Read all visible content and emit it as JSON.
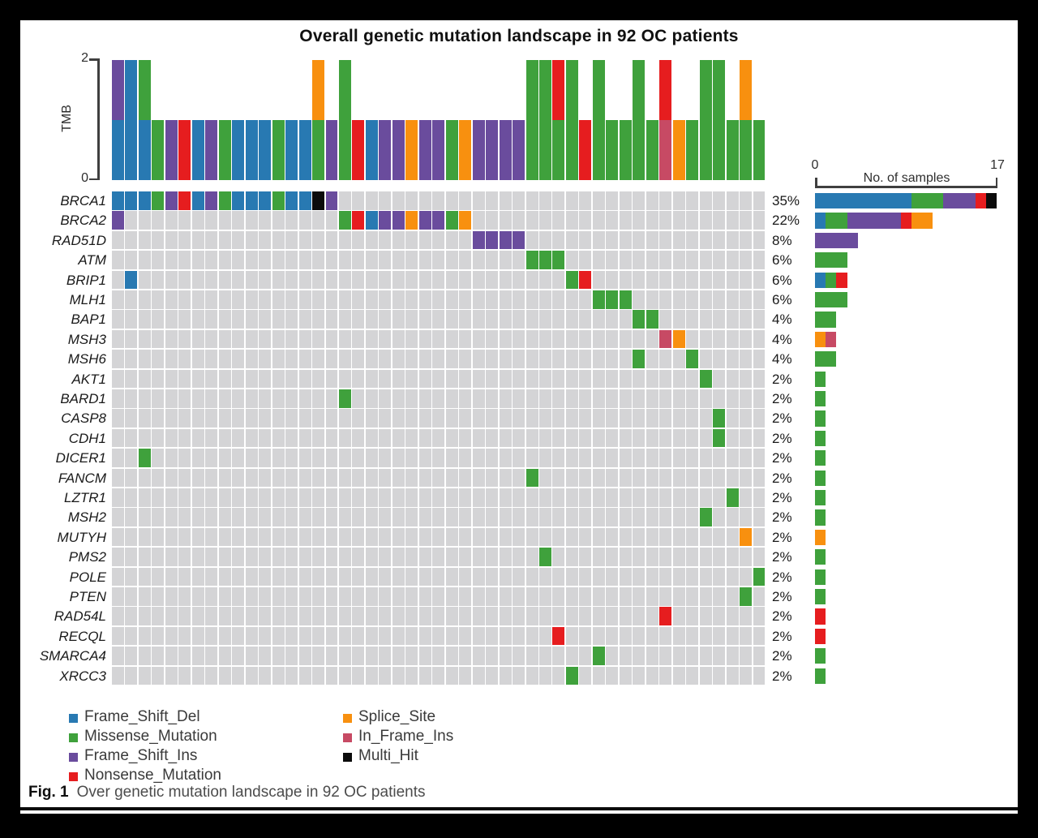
{
  "title": "Overall genetic mutation landscape in 92 OC patients",
  "chart_data": {
    "type": "heatmap",
    "subtype": "oncoplot-mutation-landscape",
    "title": "Overall genetic mutation landscape in 92 OC patients",
    "cohort_size_in_title": 92,
    "n_sample_columns": 49,
    "mutation_types": {
      "B": {
        "name": "Frame_Shift_Del",
        "color": "#2879b2"
      },
      "G": {
        "name": "Missense_Mutation",
        "color": "#3fa13c"
      },
      "P": {
        "name": "Frame_Shift_Ins",
        "color": "#6a4c9d"
      },
      "R": {
        "name": "Nonsense_Mutation",
        "color": "#e61d1f"
      },
      "O": {
        "name": "Splice_Site",
        "color": "#f8900f"
      },
      "I": {
        "name": "In_Frame_Ins",
        "color": "#c74a64"
      },
      "K": {
        "name": "Multi_Hit",
        "color": "#0b0b0b"
      }
    },
    "empty_cell_color": "#d4d4d6",
    "tmb_panel": {
      "ylabel": "TMB",
      "ylim": [
        0,
        2
      ],
      "ymin_label": "0",
      "ymax_label": "2",
      "stacks_bottom_to_top": [
        [
          "B",
          "P"
        ],
        [
          "B",
          "B"
        ],
        [
          "B",
          "G"
        ],
        [
          "G"
        ],
        [
          "P"
        ],
        [
          "R"
        ],
        [
          "B"
        ],
        [
          "P"
        ],
        [
          "G"
        ],
        [
          "B"
        ],
        [
          "B"
        ],
        [
          "B"
        ],
        [
          "G"
        ],
        [
          "B"
        ],
        [
          "B"
        ],
        [
          "G",
          "O"
        ],
        [
          "P"
        ],
        [
          "G",
          "G"
        ],
        [
          "R"
        ],
        [
          "B"
        ],
        [
          "P"
        ],
        [
          "P"
        ],
        [
          "O"
        ],
        [
          "P"
        ],
        [
          "P"
        ],
        [
          "G"
        ],
        [
          "O"
        ],
        [
          "P"
        ],
        [
          "P"
        ],
        [
          "P"
        ],
        [
          "P"
        ],
        [
          "G",
          "G"
        ],
        [
          "G",
          "G"
        ],
        [
          "G",
          "R"
        ],
        [
          "G",
          "G"
        ],
        [
          "R"
        ],
        [
          "G",
          "G"
        ],
        [
          "G"
        ],
        [
          "G"
        ],
        [
          "G",
          "G"
        ],
        [
          "G"
        ],
        [
          "I",
          "R"
        ],
        [
          "O"
        ],
        [
          "G"
        ],
        [
          "G",
          "G"
        ],
        [
          "G",
          "G"
        ],
        [
          "G"
        ],
        [
          "G",
          "O"
        ],
        [
          "G"
        ]
      ]
    },
    "genes": [
      {
        "name": "BRCA1",
        "percent": "35%",
        "cells": [
          [
            1,
            "B"
          ],
          [
            2,
            "B"
          ],
          [
            3,
            "B"
          ],
          [
            4,
            "G"
          ],
          [
            5,
            "P"
          ],
          [
            6,
            "R"
          ],
          [
            7,
            "B"
          ],
          [
            8,
            "P"
          ],
          [
            9,
            "G"
          ],
          [
            10,
            "B"
          ],
          [
            11,
            "B"
          ],
          [
            12,
            "B"
          ],
          [
            13,
            "G"
          ],
          [
            14,
            "B"
          ],
          [
            15,
            "B"
          ],
          [
            16,
            "K"
          ],
          [
            17,
            "P"
          ]
        ]
      },
      {
        "name": "BRCA2",
        "percent": "22%",
        "cells": [
          [
            1,
            "P"
          ],
          [
            18,
            "G"
          ],
          [
            19,
            "R"
          ],
          [
            20,
            "B"
          ],
          [
            21,
            "P"
          ],
          [
            22,
            "P"
          ],
          [
            23,
            "O"
          ],
          [
            24,
            "P"
          ],
          [
            25,
            "P"
          ],
          [
            26,
            "G"
          ],
          [
            27,
            "O"
          ]
        ]
      },
      {
        "name": "RAD51D",
        "percent": "8%",
        "cells": [
          [
            28,
            "P"
          ],
          [
            29,
            "P"
          ],
          [
            30,
            "P"
          ],
          [
            31,
            "P"
          ]
        ]
      },
      {
        "name": "ATM",
        "percent": "6%",
        "cells": [
          [
            32,
            "G"
          ],
          [
            33,
            "G"
          ],
          [
            34,
            "G"
          ]
        ]
      },
      {
        "name": "BRIP1",
        "percent": "6%",
        "cells": [
          [
            2,
            "B"
          ],
          [
            35,
            "G"
          ],
          [
            36,
            "R"
          ]
        ]
      },
      {
        "name": "MLH1",
        "percent": "6%",
        "cells": [
          [
            37,
            "G"
          ],
          [
            38,
            "G"
          ],
          [
            39,
            "G"
          ]
        ]
      },
      {
        "name": "BAP1",
        "percent": "4%",
        "cells": [
          [
            40,
            "G"
          ],
          [
            41,
            "G"
          ]
        ]
      },
      {
        "name": "MSH3",
        "percent": "4%",
        "cells": [
          [
            42,
            "I"
          ],
          [
            43,
            "O"
          ]
        ]
      },
      {
        "name": "MSH6",
        "percent": "4%",
        "cells": [
          [
            40,
            "G"
          ],
          [
            44,
            "G"
          ]
        ]
      },
      {
        "name": "AKT1",
        "percent": "2%",
        "cells": [
          [
            45,
            "G"
          ]
        ]
      },
      {
        "name": "BARD1",
        "percent": "2%",
        "cells": [
          [
            18,
            "G"
          ]
        ]
      },
      {
        "name": "CASP8",
        "percent": "2%",
        "cells": [
          [
            46,
            "G"
          ]
        ]
      },
      {
        "name": "CDH1",
        "percent": "2%",
        "cells": [
          [
            46,
            "G"
          ]
        ]
      },
      {
        "name": "DICER1",
        "percent": "2%",
        "cells": [
          [
            3,
            "G"
          ]
        ]
      },
      {
        "name": "FANCM",
        "percent": "2%",
        "cells": [
          [
            32,
            "G"
          ]
        ]
      },
      {
        "name": "LZTR1",
        "percent": "2%",
        "cells": [
          [
            47,
            "G"
          ]
        ]
      },
      {
        "name": "MSH2",
        "percent": "2%",
        "cells": [
          [
            45,
            "G"
          ]
        ]
      },
      {
        "name": "MUTYH",
        "percent": "2%",
        "cells": [
          [
            48,
            "O"
          ]
        ]
      },
      {
        "name": "PMS2",
        "percent": "2%",
        "cells": [
          [
            33,
            "G"
          ]
        ]
      },
      {
        "name": "POLE",
        "percent": "2%",
        "cells": [
          [
            49,
            "G"
          ]
        ]
      },
      {
        "name": "PTEN",
        "percent": "2%",
        "cells": [
          [
            48,
            "G"
          ]
        ]
      },
      {
        "name": "RAD54L",
        "percent": "2%",
        "cells": [
          [
            42,
            "R"
          ]
        ]
      },
      {
        "name": "RECQL",
        "percent": "2%",
        "cells": [
          [
            34,
            "R"
          ]
        ]
      },
      {
        "name": "SMARCA4",
        "percent": "2%",
        "cells": [
          [
            37,
            "G"
          ]
        ]
      },
      {
        "name": "XRCC3",
        "percent": "2%",
        "cells": [
          [
            35,
            "G"
          ]
        ]
      }
    ],
    "samples_panel": {
      "label": "No. of samples",
      "xlim": [
        0,
        17
      ],
      "min_label": "0",
      "max_label": "17",
      "segment_stack_order": "BGPROIK"
    }
  },
  "legend": {
    "items": [
      {
        "type": "B",
        "label": "Frame_Shift_Del"
      },
      {
        "type": "G",
        "label": "Missense_Mutation"
      },
      {
        "type": "P",
        "label": "Frame_Shift_Ins"
      },
      {
        "type": "R",
        "label": "Nonsense_Mutation"
      },
      {
        "type": "O",
        "label": "Splice_Site"
      },
      {
        "type": "I",
        "label": "In_Frame_Ins"
      },
      {
        "type": "K",
        "label": "Multi_Hit"
      }
    ]
  },
  "caption": {
    "prefix": "Fig. 1",
    "text": "Over genetic mutation landscape in 92 OC patients"
  }
}
